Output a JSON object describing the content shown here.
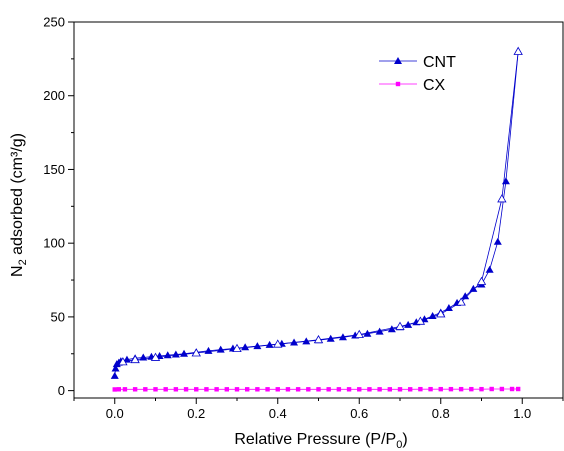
{
  "chart_data": {
    "type": "line",
    "xlabel": "Relative Pressure (P/P0)",
    "xlabel_main": "Relative Pressure (P/P",
    "xlabel_sub": "0",
    "xlabel_end": ")",
    "ylabel": "N2 adsorbed (cm³/g)",
    "ylabel_main": "N",
    "ylabel_sub": "2",
    "ylabel_end": " adsorbed (cm³/g)",
    "xlim": [
      -0.1,
      1.1
    ],
    "ylim": [
      -5,
      250
    ],
    "xticks": [
      0.0,
      0.2,
      0.4,
      0.6,
      0.8,
      1.0
    ],
    "xtick_labels": [
      "0.0",
      "0.2",
      "0.4",
      "0.6",
      "0.8",
      "1.0"
    ],
    "yticks": [
      0,
      50,
      100,
      150,
      200,
      250
    ],
    "ytick_labels": [
      "0",
      "50",
      "100",
      "150",
      "200",
      "250"
    ],
    "legend_position": "top-right",
    "grid": false,
    "series": [
      {
        "name": "CNT",
        "color": "#0000cc",
        "marker": "triangle-filled",
        "x": [
          0.0,
          0.002,
          0.005,
          0.01,
          0.015,
          0.03,
          0.05,
          0.07,
          0.09,
          0.11,
          0.13,
          0.15,
          0.17,
          0.2,
          0.23,
          0.26,
          0.29,
          0.32,
          0.35,
          0.38,
          0.41,
          0.44,
          0.47,
          0.5,
          0.53,
          0.56,
          0.59,
          0.62,
          0.65,
          0.68,
          0.7,
          0.72,
          0.74,
          0.76,
          0.78,
          0.8,
          0.82,
          0.84,
          0.86,
          0.88,
          0.9,
          0.92,
          0.94,
          0.96,
          0.99
        ],
        "values": [
          10,
          15,
          18,
          19,
          20,
          21,
          22,
          22.5,
          23,
          23.5,
          24,
          24.5,
          25,
          26,
          27,
          27.8,
          28.6,
          29.4,
          30.2,
          31,
          31.8,
          32.6,
          33.4,
          34.2,
          35.2,
          36.2,
          37.4,
          38.6,
          40,
          41.6,
          43,
          44.6,
          46.4,
          48.4,
          50.6,
          53,
          56,
          59.5,
          64,
          69,
          72,
          82,
          101,
          142,
          230
        ]
      },
      {
        "name": "",
        "color": "#0000cc",
        "marker": "triangle-open",
        "x": [
          0.99,
          0.95,
          0.9,
          0.85,
          0.8,
          0.75,
          0.7,
          0.6,
          0.5,
          0.4,
          0.3,
          0.2,
          0.1,
          0.05,
          0.02
        ],
        "values": [
          230,
          130,
          74,
          60,
          52,
          47,
          43.5,
          38,
          34.5,
          31.5,
          28.5,
          25.5,
          22.5,
          21,
          19.5
        ]
      },
      {
        "name": "CX",
        "color": "#ff00ff",
        "marker": "square-filled",
        "x": [
          0.0,
          0.01,
          0.025,
          0.05,
          0.075,
          0.1,
          0.125,
          0.15,
          0.175,
          0.2,
          0.225,
          0.25,
          0.275,
          0.3,
          0.325,
          0.35,
          0.375,
          0.4,
          0.425,
          0.45,
          0.475,
          0.5,
          0.525,
          0.55,
          0.575,
          0.6,
          0.625,
          0.65,
          0.675,
          0.7,
          0.725,
          0.75,
          0.775,
          0.8,
          0.825,
          0.85,
          0.875,
          0.9,
          0.925,
          0.95,
          0.975,
          0.99
        ],
        "values": [
          0.8,
          0.9,
          0.9,
          0.9,
          0.9,
          0.9,
          0.9,
          0.9,
          0.9,
          0.9,
          0.9,
          0.9,
          0.9,
          0.9,
          0.9,
          0.9,
          0.9,
          0.9,
          0.9,
          0.9,
          0.9,
          0.9,
          0.9,
          0.9,
          0.9,
          0.9,
          0.9,
          0.9,
          0.9,
          0.9,
          0.9,
          1.0,
          1.0,
          1.0,
          1.0,
          1.0,
          1.0,
          1.0,
          1.1,
          1.1,
          1.1,
          1.1
        ]
      }
    ]
  }
}
